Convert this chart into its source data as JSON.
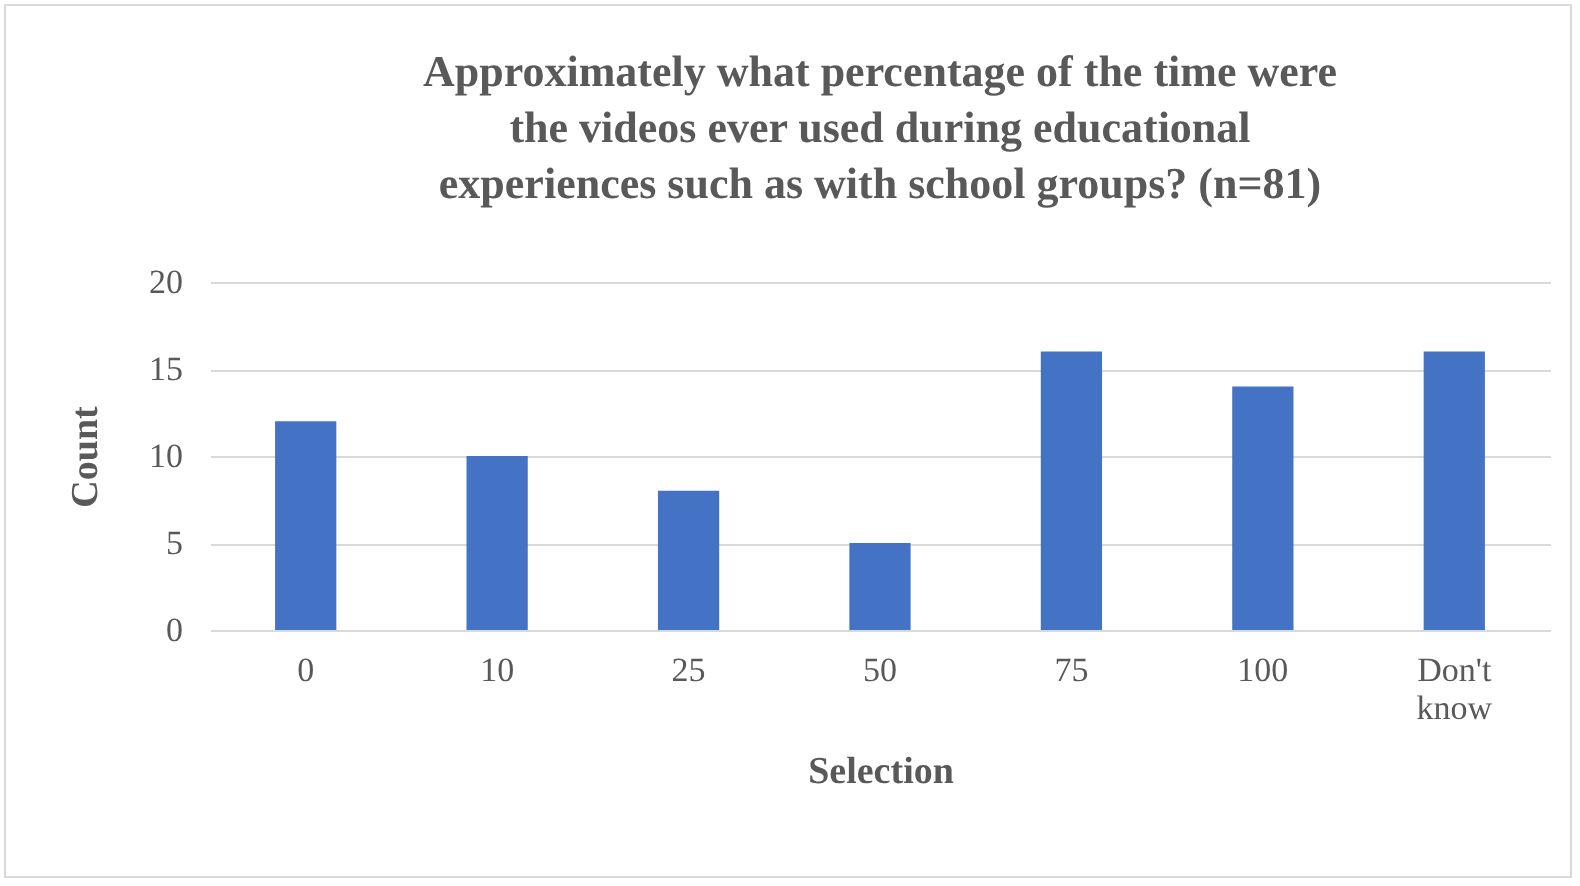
{
  "chart_data": {
    "type": "bar",
    "title": "Approximately what percentage of the time were the videos ever used during educational experiences such as with school groups? (n=81)",
    "xlabel": "Selection",
    "ylabel": "Count",
    "categories": [
      "0",
      "10",
      "25",
      "50",
      "75",
      "100",
      "Don't know"
    ],
    "values": [
      12,
      10,
      8,
      5,
      16,
      14,
      16
    ],
    "color": "#4472c4",
    "ylim": [
      0,
      20
    ],
    "yticks": [
      0,
      5,
      10,
      15,
      20
    ],
    "grid": "y"
  }
}
